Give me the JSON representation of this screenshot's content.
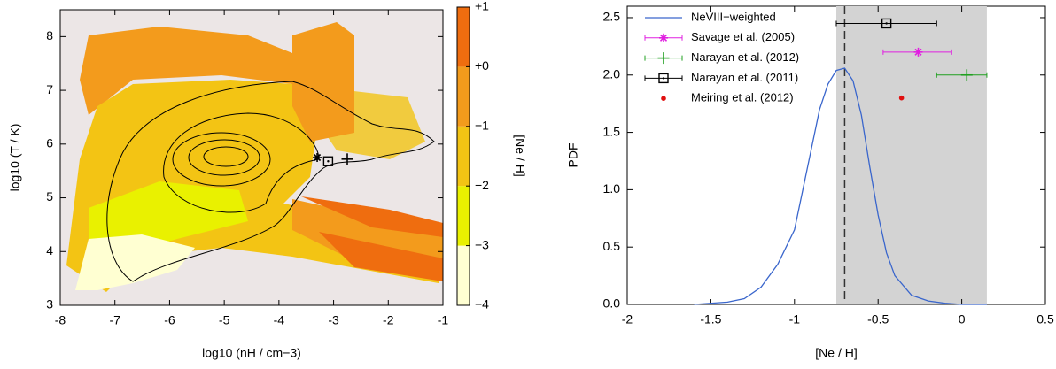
{
  "chart_data": [
    {
      "type": "heatmap",
      "xlabel": "log10 (nH / cm−3)",
      "ylabel": "log10 (T / K)",
      "xlim": [
        -8,
        -1
      ],
      "xticks": [
        -8,
        -7,
        -6,
        -5,
        -4,
        -3,
        -2,
        -1
      ],
      "ylim": [
        3,
        8.5
      ],
      "yticks": [
        3,
        4,
        5,
        6,
        7,
        8
      ],
      "colorbar_label": "[Ne / H]",
      "clim": [
        -4,
        1
      ],
      "cticks": [
        {
          "value": -4,
          "label": "−4"
        },
        {
          "value": -3,
          "label": "−3"
        },
        {
          "value": -2,
          "label": "−2"
        },
        {
          "value": -1,
          "label": "−1"
        },
        {
          "value": 0,
          "label": "+0"
        },
        {
          "value": 1,
          "label": "+1"
        }
      ],
      "colors": [
        "#ffffd2",
        "#e9f100",
        "#f3c414",
        "#f39b1c",
        "#ef6d0f"
      ],
      "points": [
        {
          "marker": "star",
          "x": -3.3,
          "y": 5.75
        },
        {
          "marker": "square",
          "x": -3.1,
          "y": 5.68
        },
        {
          "marker": "plus",
          "x": -2.75,
          "y": 5.72
        }
      ]
    },
    {
      "type": "line",
      "xlabel": "[Ne / H]",
      "ylabel": "PDF",
      "xlim": [
        -2,
        0.5
      ],
      "xticks": [
        -2,
        -1.5,
        -1,
        -0.5,
        0,
        0.5
      ],
      "ylim": [
        0,
        2.6
      ],
      "yticks": [
        {
          "value": 0,
          "label": "0.0"
        },
        {
          "value": 0.5,
          "label": "0.5"
        },
        {
          "value": 1,
          "label": "1.0"
        },
        {
          "value": 1.5,
          "label": "1.5"
        },
        {
          "value": 2,
          "label": "2.0"
        },
        {
          "value": 2.5,
          "label": "2.5"
        }
      ],
      "shaded_range": [
        -0.75,
        0.15
      ],
      "vline": -0.7,
      "series": [
        {
          "name": "NeVIII−weighted",
          "color": "#3a66cc",
          "x": [
            -1.6,
            -1.4,
            -1.3,
            -1.2,
            -1.1,
            -1.0,
            -0.95,
            -0.9,
            -0.85,
            -0.8,
            -0.75,
            -0.7,
            -0.65,
            -0.6,
            -0.55,
            -0.5,
            -0.45,
            -0.4,
            -0.3,
            -0.2,
            -0.1,
            0.0,
            0.15
          ],
          "values": [
            0,
            0.02,
            0.05,
            0.15,
            0.35,
            0.65,
            1.0,
            1.35,
            1.7,
            1.92,
            2.04,
            2.06,
            1.95,
            1.65,
            1.2,
            0.78,
            0.45,
            0.25,
            0.08,
            0.03,
            0.01,
            0,
            0
          ]
        }
      ],
      "points": [
        {
          "name": "Savage et al. (2005)",
          "color": "#e020e0",
          "marker": "star",
          "x": -0.26,
          "y": 2.2,
          "xmin": -0.47,
          "xmax": -0.06
        },
        {
          "name": "Narayan et al. (2012)",
          "color": "#20a020",
          "marker": "plus",
          "x": 0.03,
          "y": 2.0,
          "xmin": -0.15,
          "xmax": 0.15
        },
        {
          "name": "Narayan et al. (2011)",
          "color": "#000000",
          "marker": "square",
          "x": -0.45,
          "y": 2.45,
          "xmin": -0.75,
          "xmax": -0.15
        },
        {
          "name": "Meiring et al. (2012)",
          "color": "#e01010",
          "marker": "dot",
          "x": -0.36,
          "y": 1.8
        }
      ]
    }
  ]
}
